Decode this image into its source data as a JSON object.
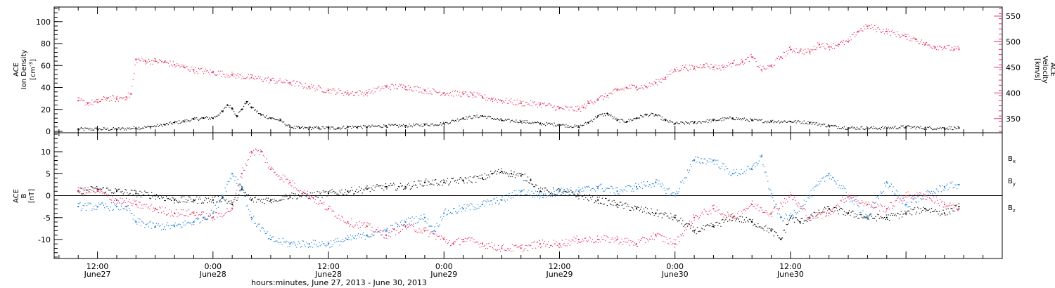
{
  "colors": {
    "density": "#000000",
    "velocity": "#e8335f",
    "bx": "#000000",
    "by": "#1c7fd8",
    "bz": "#e8335f",
    "axis": "#000000"
  },
  "chart_data": [
    {
      "type": "scatter",
      "panel": "top",
      "left_axis": {
        "title_lines": [
          "ACE",
          "Ion Density"
        ],
        "unit_base": "[cm",
        "unit_sup": "-3",
        "unit_close": "]",
        "ylim": [
          0,
          112
        ],
        "ticks": [
          0,
          20,
          40,
          60,
          80,
          100
        ]
      },
      "right_axis": {
        "title_lines": [
          "ACE",
          "Velocity",
          "[km/s]"
        ],
        "ylim": [
          325,
          565
        ],
        "ticks": [
          350,
          400,
          450,
          500,
          550
        ]
      },
      "series": [
        {
          "key": "density",
          "axis": "left",
          "x": [
            -2,
            0,
            2,
            4,
            5.5,
            7,
            8,
            9,
            10,
            11,
            12,
            13,
            13.5,
            14,
            14.5,
            15,
            15.5,
            16,
            17,
            18,
            19,
            20,
            21,
            22,
            23,
            24,
            25,
            26,
            27,
            28,
            30,
            32,
            34,
            36,
            38,
            40,
            42,
            44,
            46,
            48,
            50,
            51,
            52,
            53,
            54,
            55,
            56,
            57,
            58,
            59,
            60,
            62,
            64,
            66,
            68,
            70,
            72,
            74,
            76,
            78,
            80,
            82,
            84,
            86,
            88,
            89.5
          ],
          "y": [
            2,
            2,
            2,
            3,
            4,
            6,
            8,
            9,
            11,
            12,
            12,
            18,
            24,
            21,
            14,
            20,
            27,
            22,
            15,
            12,
            10,
            4,
            3,
            3,
            3,
            3,
            3,
            4,
            4,
            4,
            5,
            5,
            6,
            7,
            12,
            14,
            10,
            9,
            7,
            6,
            4,
            8,
            14,
            16,
            10,
            9,
            12,
            15,
            15,
            10,
            7,
            8,
            10,
            12,
            10,
            9,
            9,
            8,
            5,
            3,
            3,
            3,
            4,
            3,
            3,
            3
          ]
        },
        {
          "key": "velocity",
          "axis": "right",
          "x": [
            -2,
            -1,
            0,
            1,
            2,
            3,
            3.5,
            4,
            5,
            6,
            7,
            8,
            9,
            10,
            12,
            14,
            16,
            18,
            20,
            22,
            24,
            26,
            28,
            30,
            32,
            34,
            36,
            38,
            39,
            40,
            41,
            42,
            44,
            46,
            48,
            50,
            50.5,
            51,
            52,
            53,
            54,
            55,
            56,
            57,
            58,
            59,
            60,
            61,
            62,
            63,
            64,
            65,
            66,
            67,
            68,
            69,
            70,
            71,
            72,
            73,
            74,
            75,
            76,
            77,
            78,
            79,
            80,
            82,
            84,
            85,
            86,
            87,
            88,
            89,
            89.5
          ],
          "y": [
            385,
            380,
            382,
            390,
            388,
            392,
            398,
            465,
            462,
            462,
            460,
            455,
            450,
            445,
            440,
            435,
            430,
            425,
            420,
            412,
            405,
            400,
            400,
            412,
            412,
            405,
            400,
            398,
            396,
            392,
            388,
            385,
            380,
            378,
            370,
            368,
            372,
            380,
            388,
            395,
            405,
            410,
            412,
            412,
            420,
            430,
            445,
            450,
            448,
            455,
            450,
            450,
            458,
            460,
            470,
            445,
            452,
            470,
            485,
            482,
            480,
            495,
            490,
            495,
            500,
            520,
            530,
            520,
            510,
            505,
            495,
            490,
            490,
            485,
            485
          ]
        }
      ]
    },
    {
      "type": "scatter",
      "panel": "bottom",
      "left_axis": {
        "title_lines": [
          "ACE",
          "B",
          "[nT]"
        ],
        "ylim": [
          -14,
          14
        ],
        "ticks": [
          -10,
          -5,
          0,
          5,
          10
        ]
      },
      "zero_line": true,
      "series": [
        {
          "key": "bx",
          "label_base": "B",
          "label_sub": "x",
          "x": [
            -2,
            0,
            2,
            4,
            6,
            8,
            10,
            12,
            13,
            14,
            15,
            16,
            18,
            20,
            22,
            24,
            26,
            28,
            30,
            32,
            34,
            36,
            38,
            40,
            41,
            42,
            43,
            44,
            45,
            46,
            48,
            50,
            52,
            54,
            56,
            58,
            60,
            62,
            64,
            66,
            68,
            70,
            71,
            72,
            73,
            74,
            76,
            78,
            80,
            82,
            84,
            86,
            88,
            89.5
          ],
          "y": [
            1,
            1.5,
            1,
            0.5,
            0,
            -1,
            -1,
            -1,
            -0.5,
            -2,
            1.5,
            -1,
            -1,
            0,
            0,
            0.5,
            1,
            1.5,
            2,
            2,
            3,
            3,
            3.5,
            4,
            5,
            5.5,
            5,
            4.5,
            3.5,
            1,
            1,
            0,
            -1,
            -2,
            -3,
            -4,
            -5,
            -8,
            -7,
            -5,
            -6,
            -8,
            -10,
            -5,
            -6,
            -5,
            -3,
            -4,
            -5,
            -5,
            -4,
            -3,
            -4,
            -2.5
          ]
        },
        {
          "key": "by",
          "label_base": "B",
          "label_sub": "y",
          "x": [
            -2,
            0,
            2,
            3,
            4,
            6,
            8,
            10,
            11,
            12,
            13,
            14,
            15,
            16,
            18,
            20,
            22,
            24,
            26,
            28,
            30,
            32,
            34,
            35,
            36,
            38,
            40,
            42,
            44,
            46,
            48,
            50,
            52,
            54,
            56,
            58,
            60,
            62,
            64,
            66,
            68,
            69,
            70,
            71,
            72,
            74,
            76,
            78,
            80,
            82,
            84,
            86,
            88,
            89.5
          ],
          "y": [
            -2.5,
            -2.5,
            -2.5,
            -2.5,
            -6,
            -7,
            -7,
            -6,
            -5,
            -4,
            0,
            5,
            2,
            -5,
            -10,
            -11,
            -11,
            -11,
            -10,
            -9,
            -8,
            -6,
            -5,
            -8,
            -4,
            -3,
            -2,
            -1,
            1,
            0,
            1,
            1,
            2,
            1,
            2,
            3,
            0,
            8,
            8,
            5,
            6,
            9,
            0,
            -5,
            -5,
            0,
            5,
            0,
            -5,
            3,
            -2,
            0,
            2,
            2.5
          ]
        },
        {
          "key": "bz",
          "label_base": "B",
          "label_sub": "z",
          "x": [
            -2,
            0,
            2,
            4,
            6,
            8,
            10,
            12,
            14,
            15,
            16,
            17,
            18,
            20,
            22,
            24,
            26,
            28,
            30,
            32,
            34,
            36,
            37,
            38,
            40,
            42,
            44,
            46,
            48,
            50,
            52,
            54,
            56,
            58,
            60,
            62,
            64,
            66,
            68,
            70,
            72,
            74,
            76,
            78,
            80,
            82,
            84,
            86,
            88,
            89.5
          ],
          "y": [
            1,
            1,
            -1,
            -2,
            -3,
            -4,
            -4,
            -5,
            -3,
            5,
            10,
            10,
            6,
            3,
            0,
            -3,
            -6,
            -7,
            -9,
            -7,
            -8,
            -10,
            -11,
            -10,
            -11,
            -12,
            -12,
            -11,
            -11,
            -10,
            -10,
            -10,
            -11,
            -9,
            -11,
            -5,
            -3,
            -5,
            -2,
            -4,
            0,
            -5,
            -4,
            0,
            -2,
            -3,
            0,
            0,
            -2,
            -3
          ]
        }
      ]
    }
  ],
  "x_axis": {
    "xlim": [
      -4.5,
      94
    ],
    "major_ticks": [
      0,
      12,
      24,
      36,
      48,
      60,
      72,
      84
    ],
    "labels": [
      {
        "x": 0,
        "line1": "12:00",
        "line2": "June27"
      },
      {
        "x": 12,
        "line1": "0:00",
        "line2": "June28"
      },
      {
        "x": 24,
        "line1": "12:00",
        "line2": "June28"
      },
      {
        "x": 36,
        "line1": "0:00",
        "line2": "June29"
      },
      {
        "x": 48,
        "line1": "12:00",
        "line2": "June29"
      },
      {
        "x": 60,
        "line1": "0:00",
        "line2": "June30"
      },
      {
        "x": 72,
        "line1": "12:00",
        "line2": "June30"
      }
    ],
    "title": "hours:minutes, June 27, 2013 - June 30, 2013"
  }
}
